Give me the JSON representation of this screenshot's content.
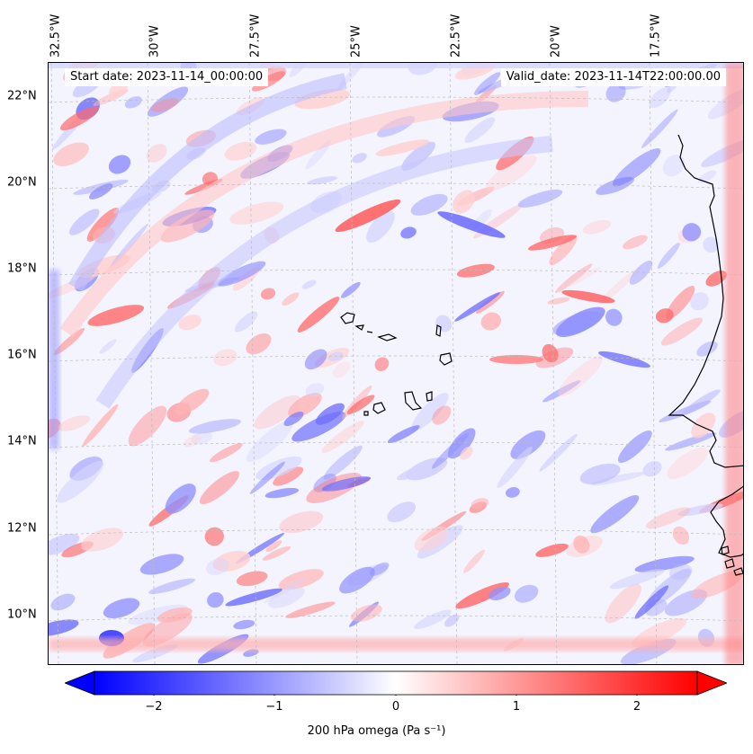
{
  "header": {
    "start_date": "Start date: 2023-11-14_00:00:00",
    "valid_date": "Valid_date: 2023-11-14T22:00:00.00"
  },
  "longitude_labels": [
    "32.5°W",
    "30°W",
    "27.5°W",
    "25°W",
    "22.5°W",
    "20°W",
    "17.5°W"
  ],
  "latitude_labels": [
    "22°N",
    "20°N",
    "18°N",
    "16°N",
    "14°N",
    "12°N",
    "10°N"
  ],
  "colorbar": {
    "ticks": [
      "−2",
      "−1",
      "0",
      "1",
      "2"
    ],
    "label": "200 hPa omega (Pa s⁻¹)",
    "min_color": "#0000ff",
    "mid_color": "#ffffff",
    "max_color": "#ff0000",
    "extend": "both"
  },
  "map": {
    "variable": "200 hPa omega",
    "colormap": "bwr",
    "coastline_color": "#000000",
    "gridline_style": "dashed-gray"
  }
}
